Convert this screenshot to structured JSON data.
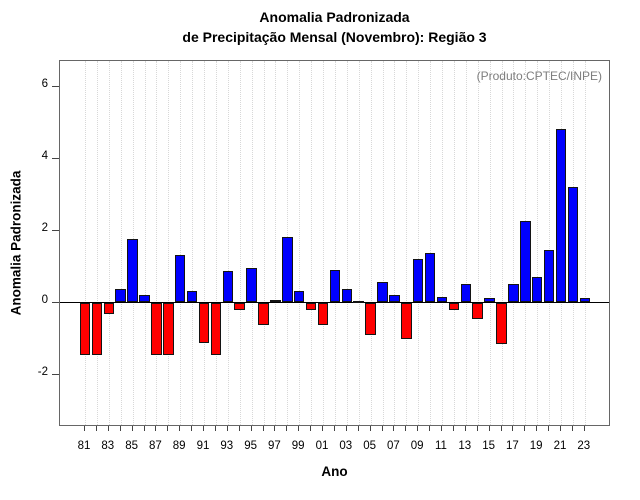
{
  "title": {
    "line1": "Anomalia Padronizada",
    "line2": "de Precipitação Mensal (Novembro): Região 3"
  },
  "annotation": "(Produto:CPTEC/INPE)",
  "chart_data": {
    "type": "bar",
    "title": "Anomalia Padronizada de Precipitação Mensal (Novembro): Região 3",
    "xlabel": "Ano",
    "ylabel": "Anomalia Padronizada",
    "years": [
      1981,
      1982,
      1983,
      1984,
      1985,
      1986,
      1987,
      1988,
      1989,
      1990,
      1991,
      1992,
      1993,
      1994,
      1995,
      1996,
      1997,
      1998,
      1999,
      2000,
      2001,
      2002,
      2003,
      2004,
      2005,
      2006,
      2007,
      2008,
      2009,
      2010,
      2011,
      2012,
      2013,
      2014,
      2015,
      2016,
      2017,
      2018,
      2019,
      2020,
      2021,
      2022,
      2023
    ],
    "values": [
      -1.45,
      -1.45,
      -0.3,
      0.35,
      1.75,
      0.2,
      -1.45,
      -1.45,
      1.3,
      0.3,
      -1.1,
      -1.45,
      0.85,
      -0.2,
      0.95,
      -0.6,
      0.05,
      1.8,
      0.3,
      -0.2,
      -0.6,
      0.9,
      0.35,
      0.04,
      -0.9,
      0.55,
      0.2,
      -1.0,
      1.2,
      1.35,
      0.15,
      -0.2,
      0.5,
      -0.45,
      0.1,
      -1.15,
      0.5,
      2.25,
      0.7,
      1.45,
      4.8,
      3.2,
      0.1
    ],
    "x_tick_labels": [
      "81",
      "83",
      "85",
      "87",
      "89",
      "91",
      "93",
      "95",
      "97",
      "99",
      "01",
      "03",
      "05",
      "07",
      "09",
      "11",
      "13",
      "15",
      "17",
      "19",
      "21",
      "23"
    ],
    "y_ticks": [
      -2,
      0,
      2,
      4,
      6
    ],
    "ylim": [
      -3.4,
      6.8
    ],
    "grid": "vertical-dotted",
    "legend": "none",
    "annotation": "(Produto:CPTEC/INPE)",
    "annotation_position": "top-right",
    "colors": {
      "positive": "#0000ff",
      "negative": "#ff0000",
      "bar_border": "#141414",
      "annotation_text": "#7d7d7d",
      "box_border": "#666666"
    }
  }
}
